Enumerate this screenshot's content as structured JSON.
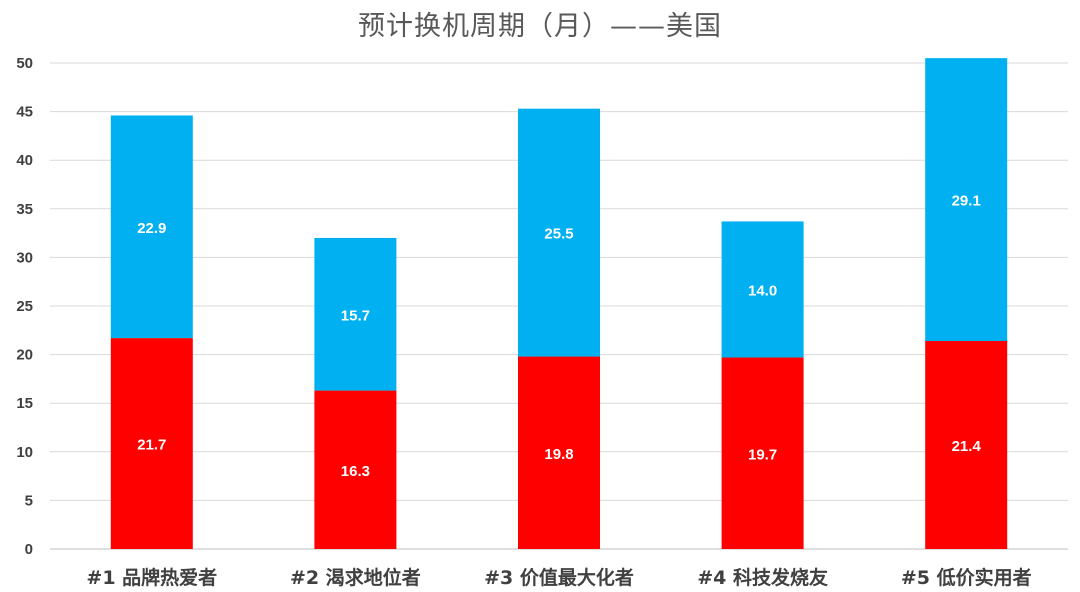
{
  "chart_data": {
    "type": "bar",
    "stacked": true,
    "title": "预计换机周期（月）——美国",
    "xlabel": "",
    "ylabel": "",
    "ylim": [
      0,
      50
    ],
    "yticks": [
      0,
      5,
      10,
      15,
      20,
      25,
      30,
      35,
      40,
      45,
      50
    ],
    "grid": true,
    "legend": "none",
    "categories": [
      "#1 品牌热爱者",
      "#2 渴求地位者",
      "#3 价值最大化者",
      "#4 科技发烧友",
      "#5 低价实用者"
    ],
    "series": [
      {
        "color": "#ff0000",
        "values": [
          21.7,
          16.3,
          19.8,
          19.7,
          21.4
        ],
        "labels": [
          "21.7",
          "16.3",
          "19.8",
          "19.7",
          "21.4"
        ]
      },
      {
        "color": "#00b0f0",
        "values": [
          22.9,
          15.7,
          25.5,
          14.0,
          29.1
        ],
        "labels": [
          "22.9",
          "15.7",
          "25.5",
          "14.0",
          "29.1"
        ]
      }
    ]
  }
}
